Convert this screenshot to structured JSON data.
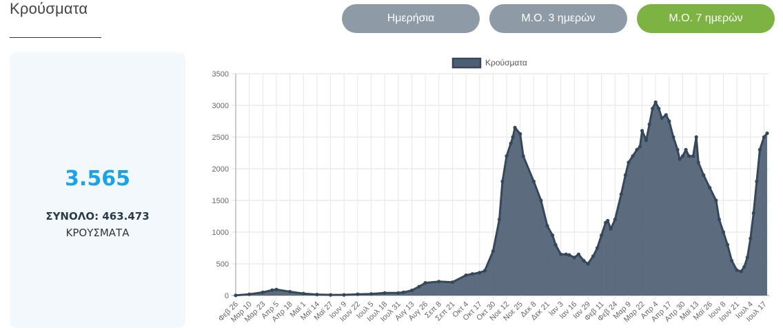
{
  "header": {
    "title": "Κρούσματα"
  },
  "toggle_buttons": [
    {
      "label": "Ημερήσια",
      "active": false
    },
    {
      "label": "Μ.Ο. 3 ημερών",
      "active": false
    },
    {
      "label": "Μ.Ο. 7 ημερών",
      "active": true
    }
  ],
  "colors": {
    "accent_active": "#7cb342",
    "button_inactive": "#8e9aa6",
    "big_number": "#1aa3e8",
    "area_fill": "#4e5f73",
    "area_line": "#34475b"
  },
  "stats": {
    "value": "3.565",
    "total_label": "ΣΥΝΟΛΟ: 463.473",
    "sub_label": "ΚΡΟΥΣΜΑΤΑ"
  },
  "chart_data": {
    "type": "area",
    "legend": "Κρούσματα",
    "legend_position": "top",
    "grid": true,
    "ylim": [
      0,
      3500
    ],
    "yticks": [
      0,
      500,
      1000,
      1500,
      2000,
      2500,
      3000,
      3500
    ],
    "xticks": [
      "Φεβ 26",
      "Μαρ 10",
      "Μαρ 23",
      "Απρ 5",
      "Απρ 18",
      "Μαϊ 1",
      "Μαϊ 14",
      "Μαϊ 27",
      "Ιουν 9",
      "Ιουν 22",
      "Ιουλ 5",
      "Ιουλ 18",
      "Ιουλ 31",
      "Αυγ 13",
      "Αυγ 26",
      "Σεπ 8",
      "Σεπ 21",
      "Οκτ 4",
      "Οκτ 17",
      "Οκτ 30",
      "Νοε 12",
      "Νοε 25",
      "Δεκ 8",
      "Δεκ 21",
      "Ιαν 3",
      "Ιαν 16",
      "Ιαν 29",
      "Φεβ 11",
      "Φεβ 24",
      "Μαρ 9",
      "Μαρ 22",
      "Απρ 4",
      "Απρ 17",
      "Απρ 30",
      "Μαϊ 13",
      "Μαϊ 26",
      "Ιουν 8",
      "Ιουν 21",
      "Ιουλ 4",
      "Ιουλ 17"
    ],
    "series": [
      {
        "name": "Κρούσματα",
        "x": [
          "2020-02-26",
          "2020-03-10",
          "2020-03-23",
          "2020-04-01",
          "2020-04-05",
          "2020-04-18",
          "2020-05-01",
          "2020-05-14",
          "2020-05-27",
          "2020-06-09",
          "2020-06-22",
          "2020-07-05",
          "2020-07-18",
          "2020-07-31",
          "2020-08-05",
          "2020-08-13",
          "2020-08-20",
          "2020-08-26",
          "2020-09-08",
          "2020-09-21",
          "2020-10-04",
          "2020-10-10",
          "2020-10-17",
          "2020-10-22",
          "2020-10-30",
          "2020-11-05",
          "2020-11-08",
          "2020-11-12",
          "2020-11-16",
          "2020-11-18",
          "2020-11-20",
          "2020-11-25",
          "2020-11-28",
          "2020-12-08",
          "2020-12-15",
          "2020-12-21",
          "2020-12-26",
          "2020-12-29",
          "2021-01-03",
          "2021-01-08",
          "2021-01-11",
          "2021-01-16",
          "2021-01-20",
          "2021-01-25",
          "2021-01-29",
          "2021-02-03",
          "2021-02-07",
          "2021-02-11",
          "2021-02-15",
          "2021-02-17",
          "2021-02-20",
          "2021-02-24",
          "2021-03-02",
          "2021-03-06",
          "2021-03-09",
          "2021-03-13",
          "2021-03-17",
          "2021-03-20",
          "2021-03-22",
          "2021-03-26",
          "2021-03-29",
          "2021-04-01",
          "2021-04-04",
          "2021-04-07",
          "2021-04-10",
          "2021-04-14",
          "2021-04-17",
          "2021-04-21",
          "2021-04-25",
          "2021-04-27",
          "2021-04-30",
          "2021-05-03",
          "2021-05-06",
          "2021-05-10",
          "2021-05-13",
          "2021-05-15",
          "2021-05-20",
          "2021-05-26",
          "2021-06-01",
          "2021-06-04",
          "2021-06-08",
          "2021-06-12",
          "2021-06-16",
          "2021-06-21",
          "2021-06-25",
          "2021-06-28",
          "2021-07-01",
          "2021-07-04",
          "2021-07-07",
          "2021-07-10",
          "2021-07-13",
          "2021-07-17",
          "2021-07-20"
        ],
        "values": [
          2,
          20,
          50,
          85,
          95,
          60,
          30,
          15,
          10,
          10,
          20,
          25,
          40,
          40,
          50,
          80,
          140,
          200,
          220,
          210,
          320,
          340,
          360,
          390,
          700,
          1200,
          1800,
          2200,
          2400,
          2500,
          2650,
          2550,
          2200,
          1800,
          1500,
          1100,
          950,
          800,
          650,
          650,
          640,
          600,
          650,
          550,
          500,
          620,
          750,
          950,
          1150,
          1180,
          1050,
          1200,
          1600,
          1900,
          2100,
          2200,
          2300,
          2350,
          2600,
          2450,
          2700,
          2950,
          3050,
          2950,
          2800,
          2850,
          2750,
          2500,
          2300,
          2150,
          2200,
          2300,
          2200,
          2200,
          2500,
          2100,
          1900,
          1700,
          1500,
          1200,
          1000,
          800,
          550,
          400,
          380,
          450,
          600,
          900,
          1300,
          1800,
          2300,
          2500,
          2560
        ]
      }
    ]
  }
}
